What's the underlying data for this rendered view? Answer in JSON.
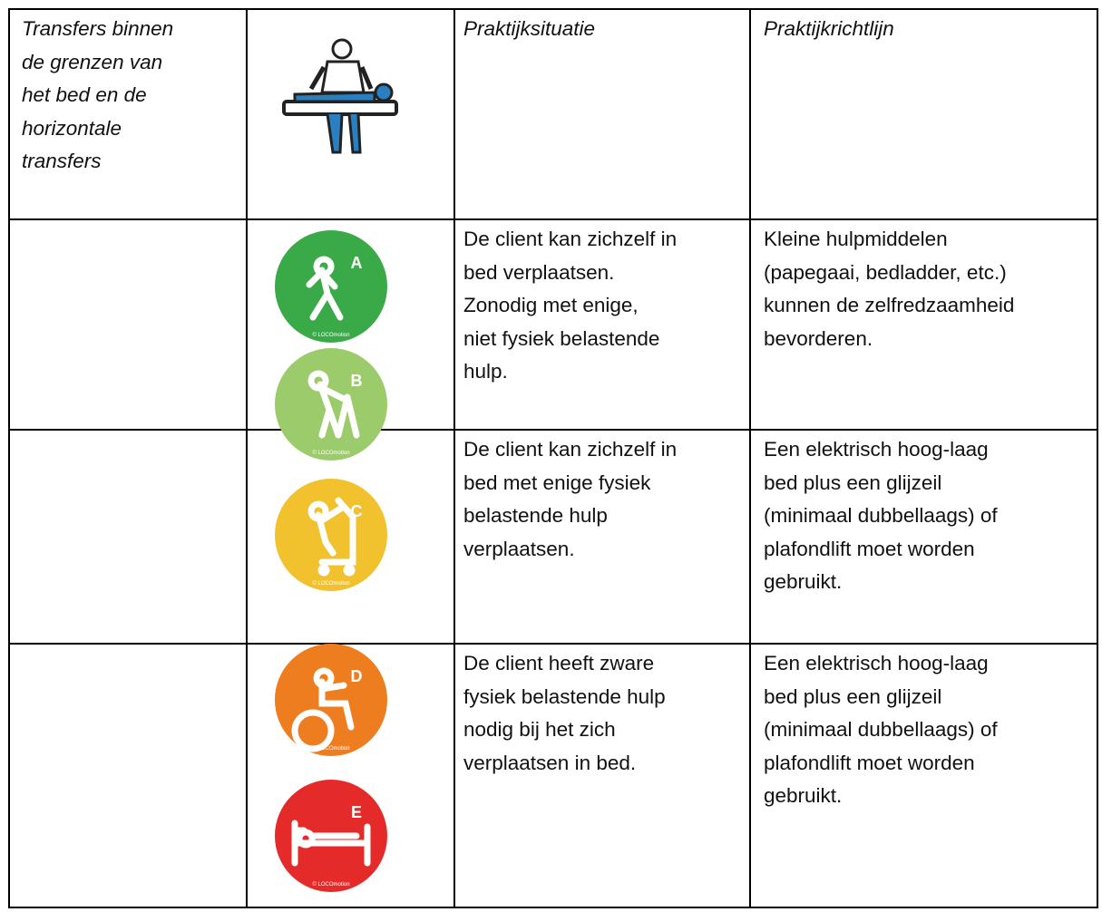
{
  "table": {
    "header": {
      "title_lines": [
        "Transfers binnen",
        "de grenzen van",
        "het bed en de",
        "horizontale",
        "transfers"
      ],
      "situation": "Praktijksituatie",
      "guideline": "Praktijkrichtlijn"
    },
    "rows": [
      {
        "icons": [
          {
            "letter": "A",
            "color": "#3aaa49",
            "credit": "© LOCOmotion"
          },
          {
            "letter": "B",
            "color": "#9ccb6b",
            "credit": "© LOCOmotion"
          }
        ],
        "situation": [
          "De client kan zichzelf in",
          "bed verplaatsen.",
          "Zonodig met enige,",
          "niet fysiek belastende",
          "hulp."
        ],
        "guideline": [
          "Kleine hulpmiddelen",
          "(papegaai, bedladder, etc.)",
          "kunnen de zelfredzaamheid",
          "bevorderen."
        ]
      },
      {
        "icons": [
          {
            "letter": "C",
            "color": "#f2c12e",
            "credit": "© LOCOmotion"
          }
        ],
        "situation": [
          "De client kan zichzelf in",
          "bed met enige fysiek",
          "belastende hulp",
          "verplaatsen."
        ],
        "guideline": [
          "Een elektrisch hoog-laag",
          "bed plus een glijzeil",
          "(minimaal dubbellaags) of",
          "plafondlift moet worden",
          "gebruikt."
        ]
      },
      {
        "icons": [
          {
            "letter": "D",
            "color": "#ee7d1f",
            "credit": "© LOCOmotion"
          },
          {
            "letter": "E",
            "color": "#e52a2a",
            "credit": "© LOCOmotion"
          }
        ],
        "situation": [
          "De client heeft zware",
          "fysiek belastende hulp",
          "nodig bij het zich",
          "verplaatsen in bed."
        ],
        "guideline": [
          "Een elektrisch hoog-laag",
          "bed plus een glijzeil",
          "(minimaal dubbellaags) of",
          "plafondlift moet worden",
          "gebruikt."
        ]
      }
    ]
  }
}
